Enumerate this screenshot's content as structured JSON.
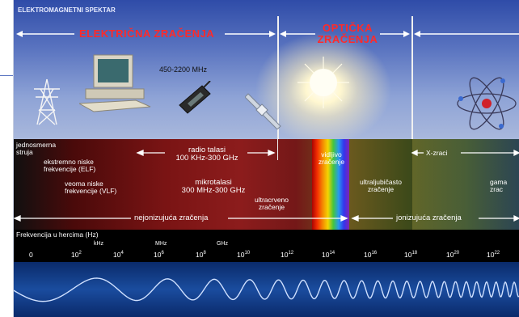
{
  "title": "ELEKTROMAGNETNI SPEKTAR",
  "sections": {
    "electric": "ELEKTRIČNA ZRAČENJA",
    "optical_line1": "OPTIČKA",
    "optical_line2": "ZRAČENJA"
  },
  "annotations": {
    "mobile_freq": "450-2200 MHz"
  },
  "bands": {
    "dc_line1": "jednosmerna",
    "dc_line2": "struja",
    "elf_line1": "ekstremno niske",
    "elf_line2": "frekvencije (ELF)",
    "vlf_line1": "veoma niske",
    "vlf_line2": "frekvencije (VLF)",
    "radio_line1": "radio talasi",
    "radio_line2": "100 KHz-300 GHz",
    "micro_line1": "mikrotalasi",
    "micro_line2": "300 MHz-300 GHz",
    "ir_line1": "ultracrveno",
    "ir_line2": "zračenje",
    "vis_line1": "vidljivo",
    "vis_line2": "zračenje",
    "uv_line1": "ultraljubičasto",
    "uv_line2": "zračenje",
    "xray": "X-zraci",
    "gamma_line1": "gama",
    "gamma_line2": "zrac"
  },
  "radiation": {
    "non_ionizing": "nejonizujuća zračenja",
    "ionizing": "jonizujuća zračenja"
  },
  "axis": {
    "title": "Frekvencija u hercima (Hz)",
    "unit_khz": "kHz",
    "unit_mhz": "MHz",
    "unit_ghz": "GHz"
  },
  "ticks": {
    "t0": "0",
    "base": "10",
    "e2": "2",
    "e4": "4",
    "e6": "6",
    "e8": "8",
    "e10": "10",
    "e12": "12",
    "e14": "14",
    "e16": "16",
    "e18": "18",
    "e20": "20",
    "e22": "22"
  }
}
